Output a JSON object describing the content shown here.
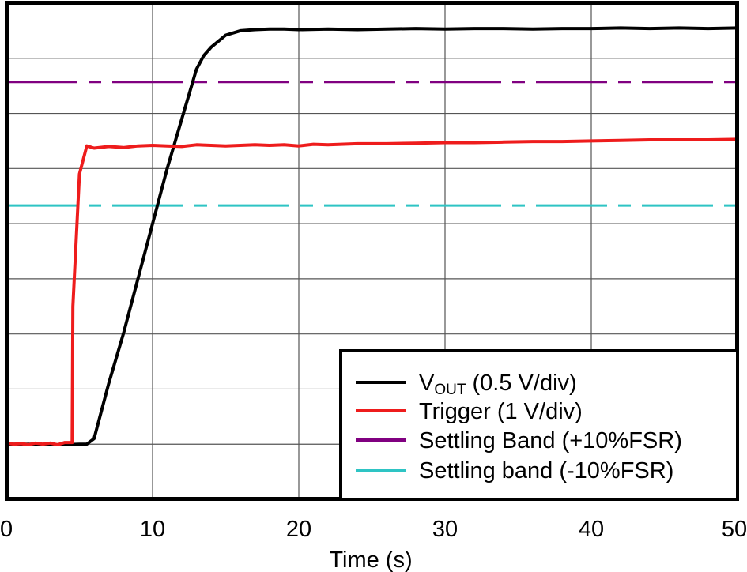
{
  "chart_data": {
    "type": "line",
    "title": "",
    "xlabel": "Time (s)",
    "ylabel": "",
    "xlim": [
      0,
      50
    ],
    "x_ticks": [
      0,
      10,
      20,
      30,
      40,
      50
    ],
    "x_tick_labels": [
      "0",
      "10",
      "20",
      "30",
      "40",
      "50"
    ],
    "y_divisions": 9,
    "grid": true,
    "legend_placement": "bottom-right",
    "series": [
      {
        "key": "vout",
        "name_main": "V",
        "name_sub": "OUT",
        "name_rest": " (0.5 V/div)",
        "color": "#000000",
        "unit": "div",
        "x": [
          0,
          1,
          2,
          3,
          4,
          5,
          5.5,
          6,
          7,
          8,
          9,
          10,
          11,
          12,
          13,
          13.5,
          14,
          15,
          16,
          17,
          18,
          19,
          20,
          22,
          24,
          26,
          28,
          30,
          32,
          34,
          36,
          38,
          40,
          42,
          44,
          46,
          48,
          50
        ],
        "y": [
          1.0,
          1.0,
          1.0,
          0.99,
          0.99,
          1.0,
          1.0,
          1.1,
          2.1,
          3.0,
          4.0,
          5.0,
          6.0,
          6.9,
          7.8,
          8.05,
          8.2,
          8.42,
          8.5,
          8.52,
          8.53,
          8.53,
          8.52,
          8.53,
          8.52,
          8.53,
          8.54,
          8.53,
          8.54,
          8.54,
          8.53,
          8.54,
          8.54,
          8.55,
          8.54,
          8.55,
          8.54,
          8.55
        ]
      },
      {
        "key": "trigger",
        "name_main": "Trigger (1 V/div)",
        "name_sub": "",
        "name_rest": "",
        "color": "#ee1c1c",
        "unit": "div",
        "x": [
          0,
          0.5,
          1,
          1.5,
          2,
          2.5,
          3,
          3.5,
          4,
          4.5,
          4.55,
          5.0,
          5.5,
          6,
          7,
          8,
          9,
          10,
          11,
          12,
          13,
          14,
          15,
          16,
          17,
          18,
          19,
          20,
          21,
          22,
          24,
          26,
          28,
          30,
          32,
          34,
          36,
          38,
          40,
          42,
          44,
          46,
          48,
          50
        ],
        "y": [
          1.02,
          1.0,
          1.01,
          0.99,
          1.02,
          1.0,
          1.02,
          0.99,
          1.03,
          1.03,
          3.5,
          5.9,
          6.41,
          6.37,
          6.4,
          6.38,
          6.41,
          6.42,
          6.41,
          6.4,
          6.43,
          6.42,
          6.41,
          6.42,
          6.43,
          6.42,
          6.43,
          6.41,
          6.44,
          6.43,
          6.45,
          6.45,
          6.46,
          6.47,
          6.47,
          6.48,
          6.49,
          6.49,
          6.5,
          6.51,
          6.52,
          6.52,
          6.52,
          6.53
        ]
      },
      {
        "key": "band_plus",
        "name_main": "Settling Band (+10%FSR)",
        "name_sub": "",
        "name_rest": "",
        "color": "#800080",
        "unit": "div",
        "x": [
          0,
          50
        ],
        "y": [
          7.57,
          7.57
        ]
      },
      {
        "key": "band_minus",
        "name_main": "Settling band (-10%FSR)",
        "name_sub": "",
        "name_rest": "",
        "color": "#2ec4c4",
        "unit": "div",
        "x": [
          0,
          50
        ],
        "y": [
          5.33,
          5.33
        ]
      }
    ]
  }
}
